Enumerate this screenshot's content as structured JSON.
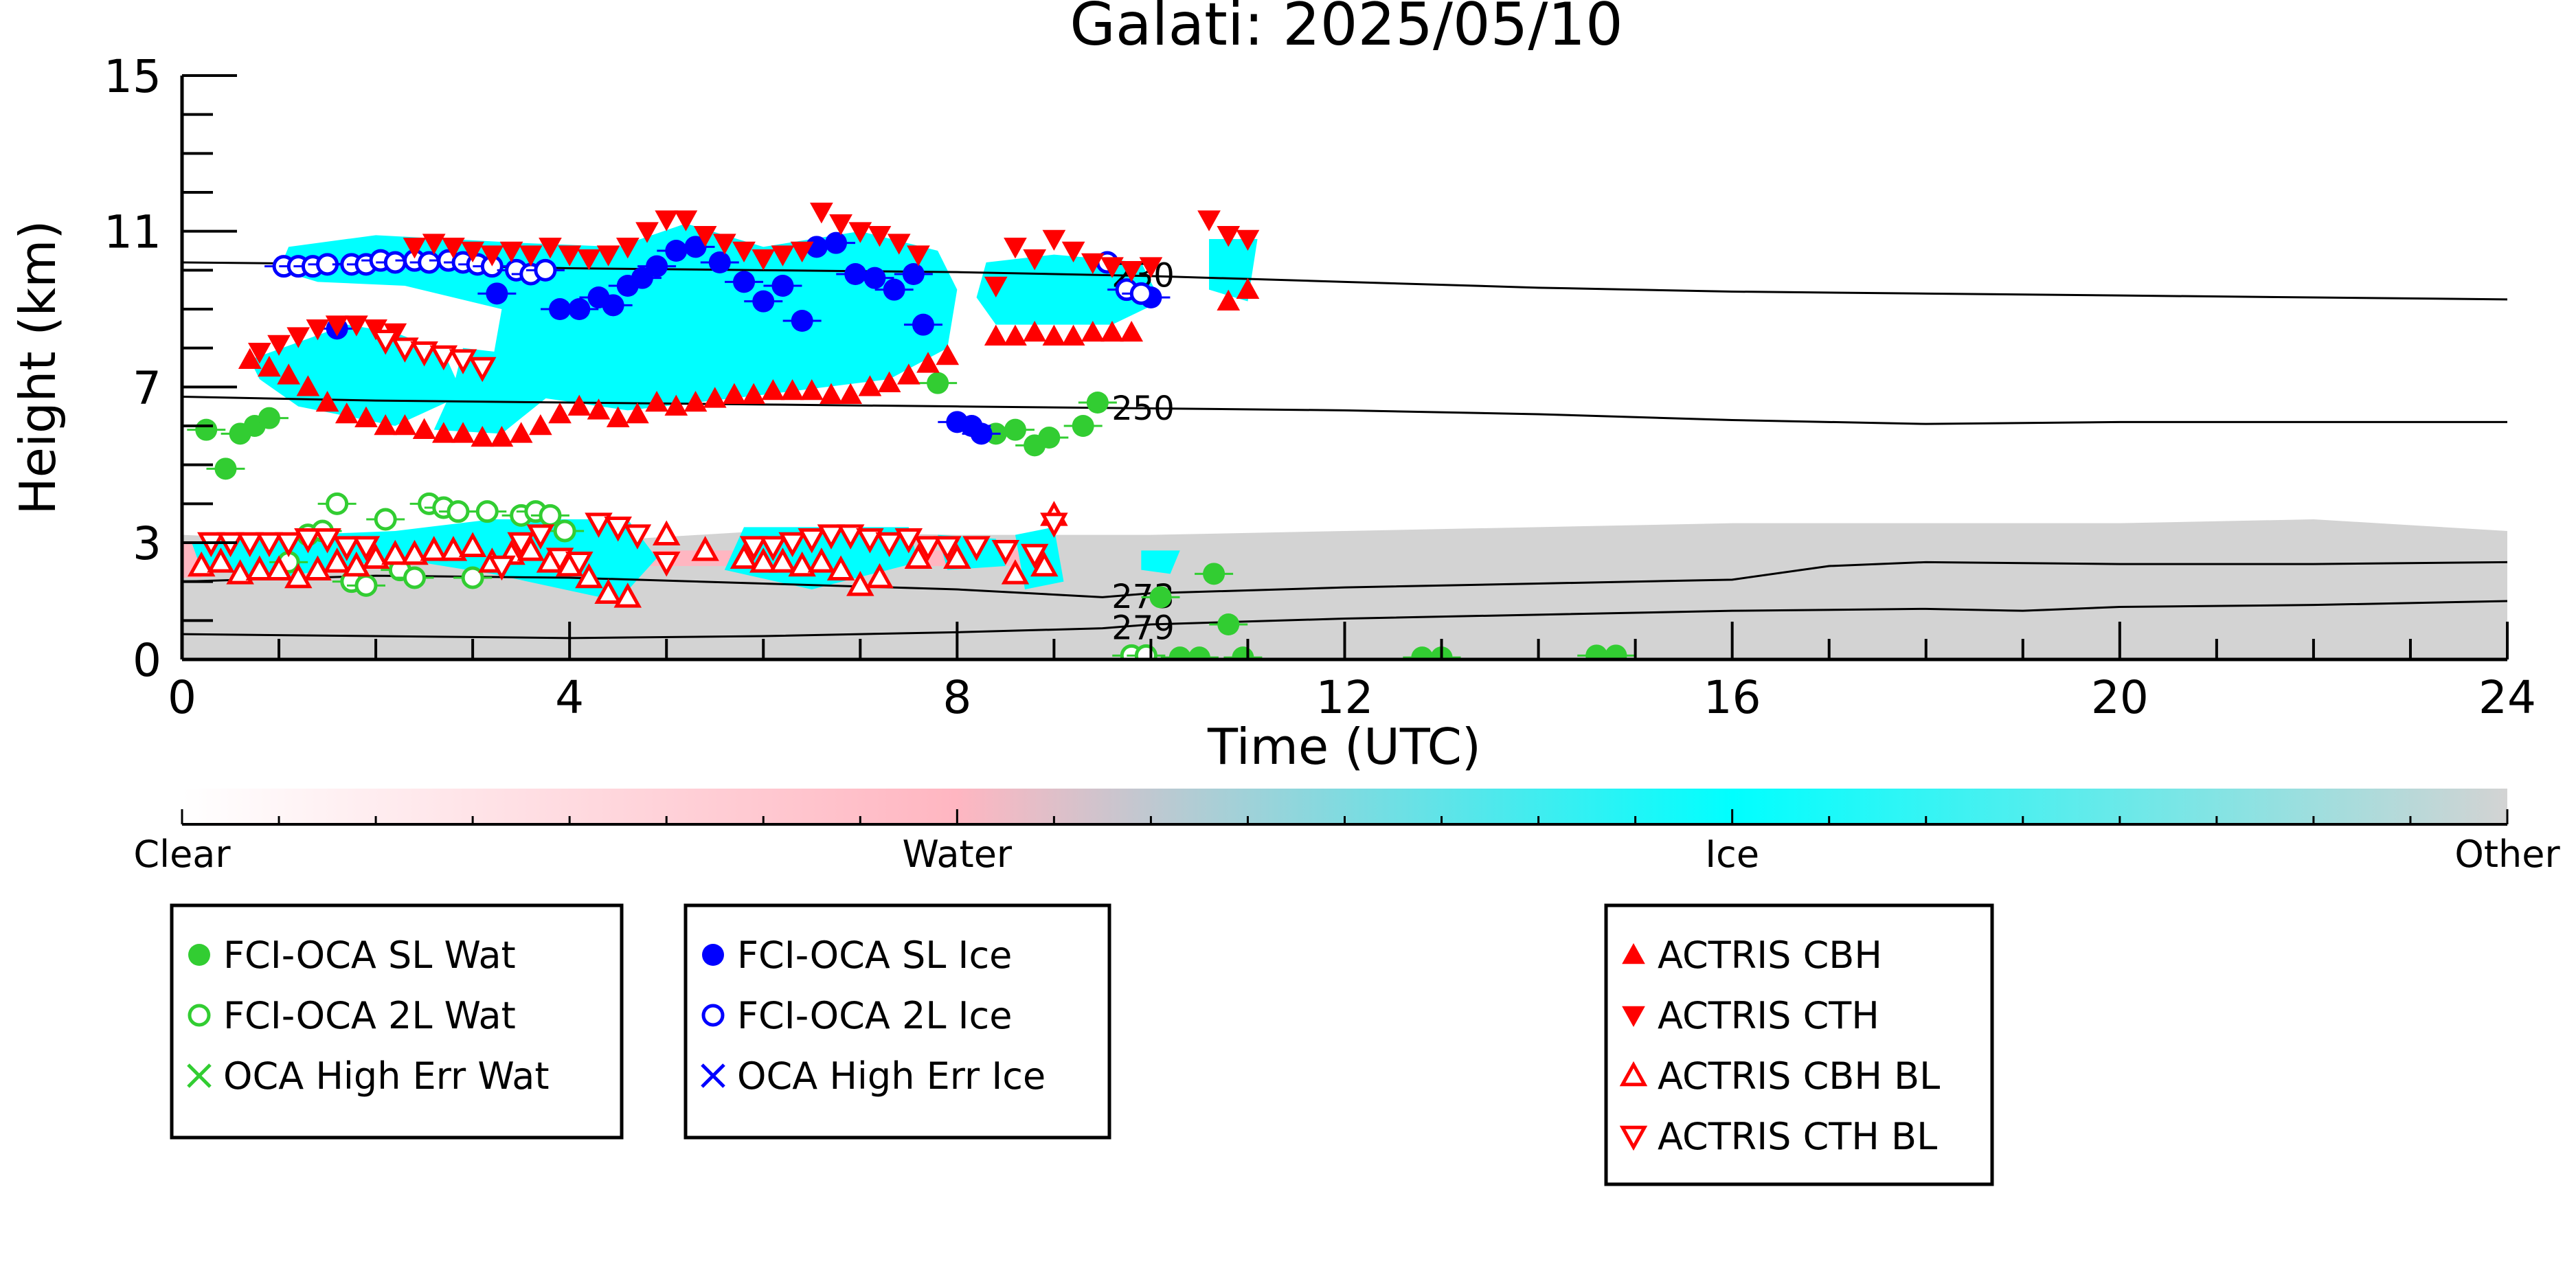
{
  "chart_data": {
    "type": "scatter",
    "title": "Galati: 2025/05/10",
    "xlabel": "Time (UTC)",
    "ylabel": "Height (km)",
    "xlim": [
      0,
      24
    ],
    "ylim": [
      0,
      15
    ],
    "x_ticks": [
      0,
      4,
      8,
      12,
      16,
      20,
      24
    ],
    "y_ticks": [
      0,
      3,
      7,
      11,
      15
    ],
    "colorbar": {
      "labels": [
        "Clear",
        "Water",
        "Ice",
        "Other"
      ],
      "colors": [
        "#ffffff",
        "#ffb6c1",
        "#00ffff",
        "#d3d3d3"
      ]
    },
    "contours": [
      {
        "label": "230",
        "x": [
          0,
          2,
          4,
          6,
          8,
          10,
          12,
          14,
          16,
          18,
          20,
          22,
          24
        ],
        "y": [
          10.2,
          10.15,
          10.05,
          10.0,
          9.95,
          9.85,
          9.7,
          9.55,
          9.45,
          9.4,
          9.35,
          9.3,
          9.25
        ]
      },
      {
        "label": "250",
        "x": [
          0,
          2,
          4,
          6,
          8,
          10,
          12,
          14,
          16,
          18,
          20,
          22,
          24
        ],
        "y": [
          6.75,
          6.65,
          6.6,
          6.55,
          6.5,
          6.45,
          6.4,
          6.3,
          6.15,
          6.05,
          6.1,
          6.1,
          6.1
        ]
      },
      {
        "label": "273",
        "x": [
          0,
          2,
          4,
          6,
          8,
          9.5,
          10,
          12,
          14,
          16,
          17,
          18,
          20,
          22,
          24
        ],
        "y": [
          2.0,
          2.15,
          2.1,
          1.95,
          1.8,
          1.6,
          1.7,
          1.85,
          1.95,
          2.05,
          2.4,
          2.5,
          2.45,
          2.45,
          2.5
        ]
      },
      {
        "label": "279",
        "x": [
          0,
          2,
          4,
          6,
          8,
          9.5,
          10,
          12,
          14,
          16,
          18,
          19,
          20,
          22,
          24
        ],
        "y": [
          0.65,
          0.6,
          0.55,
          0.6,
          0.7,
          0.8,
          0.9,
          1.05,
          1.15,
          1.25,
          1.3,
          1.25,
          1.35,
          1.4,
          1.5
        ]
      }
    ],
    "series": [
      {
        "name": "FCI-OCA SL Wat",
        "color": "#32cd32",
        "marker": "filled-circle",
        "x": [
          0.25,
          0.45,
          0.6,
          0.75,
          0.9,
          7.8,
          8.4,
          8.6,
          8.8,
          8.95,
          9.3,
          9.45,
          10.1,
          10.3,
          10.5,
          10.65,
          10.8,
          10.95,
          12.8,
          13.0,
          14.6,
          14.8
        ],
        "y": [
          5.9,
          4.9,
          5.8,
          6.0,
          6.2,
          7.1,
          5.8,
          5.9,
          5.5,
          5.7,
          6.0,
          6.6,
          1.6,
          0.05,
          0.05,
          2.2,
          0.9,
          0.05,
          0.05,
          0.05,
          0.1,
          0.1
        ]
      },
      {
        "name": "FCI-OCA 2L Wat",
        "color": "#32cd32",
        "marker": "open-circle",
        "x": [
          1.1,
          1.3,
          1.45,
          1.6,
          1.75,
          1.9,
          2.1,
          2.25,
          2.4,
          2.55,
          2.7,
          2.85,
          3.0,
          3.15,
          3.5,
          3.65,
          3.8,
          3.95,
          9.8,
          9.95
        ],
        "y": [
          2.5,
          3.2,
          3.3,
          4.0,
          2.0,
          1.9,
          3.6,
          2.3,
          2.1,
          4.0,
          3.9,
          3.8,
          2.1,
          3.8,
          3.7,
          3.8,
          3.7,
          3.3,
          0.1,
          0.1
        ]
      },
      {
        "name": "OCA High Err Wat",
        "color": "#32cd32",
        "marker": "x",
        "x": [],
        "y": []
      },
      {
        "name": "FCI-OCA SL Ice",
        "color": "#0000ff",
        "marker": "filled-circle",
        "x": [
          1.6,
          3.25,
          3.9,
          4.1,
          4.3,
          4.45,
          4.6,
          4.75,
          4.9,
          5.1,
          5.3,
          5.55,
          5.8,
          6.0,
          6.2,
          6.4,
          6.55,
          6.75,
          6.95,
          7.15,
          7.35,
          7.55,
          7.65,
          8.0,
          8.15,
          8.25,
          10.0
        ],
        "y": [
          8.5,
          9.4,
          9.0,
          9.0,
          9.3,
          9.1,
          9.6,
          9.8,
          10.1,
          10.5,
          10.6,
          10.2,
          9.7,
          9.2,
          9.6,
          8.7,
          10.6,
          10.7,
          9.9,
          9.8,
          9.5,
          9.9,
          8.6,
          6.1,
          6.0,
          5.8,
          9.3
        ]
      },
      {
        "name": "FCI-OCA 2L Ice",
        "color": "#0000ff",
        "marker": "open-circle",
        "x": [
          1.05,
          1.2,
          1.35,
          1.5,
          1.75,
          1.9,
          2.05,
          2.2,
          2.4,
          2.55,
          2.75,
          2.9,
          3.05,
          3.2,
          3.45,
          3.6,
          3.75,
          9.55,
          9.75,
          9.9
        ],
        "y": [
          10.1,
          10.1,
          10.1,
          10.15,
          10.15,
          10.15,
          10.25,
          10.2,
          10.25,
          10.2,
          10.25,
          10.2,
          10.15,
          10.1,
          10.0,
          9.9,
          10.0,
          10.2,
          9.5,
          9.4
        ]
      },
      {
        "name": "OCA High Err Ice",
        "color": "#0000ff",
        "marker": "x",
        "x": [],
        "y": []
      },
      {
        "name": "ACTRIS CBH",
        "color": "#ff0000",
        "marker": "filled-triangle-up",
        "x": [
          0.7,
          0.9,
          1.1,
          1.3,
          1.5,
          1.7,
          1.9,
          2.1,
          2.3,
          2.5,
          2.7,
          2.9,
          3.1,
          3.3,
          3.5,
          3.7,
          3.9,
          4.1,
          4.3,
          4.5,
          4.7,
          4.9,
          5.1,
          5.3,
          5.5,
          5.7,
          5.9,
          6.1,
          6.3,
          6.5,
          6.7,
          6.9,
          7.1,
          7.3,
          7.5,
          7.7,
          7.9,
          8.4,
          8.6,
          8.8,
          9.0,
          9.2,
          9.4,
          9.6,
          9.8,
          10.8,
          11.0
        ],
        "y": [
          7.7,
          7.5,
          7.3,
          7.0,
          6.6,
          6.3,
          6.2,
          6.0,
          6.0,
          5.9,
          5.8,
          5.8,
          5.7,
          5.7,
          5.8,
          6.0,
          6.3,
          6.5,
          6.4,
          6.2,
          6.3,
          6.6,
          6.5,
          6.6,
          6.7,
          6.8,
          6.8,
          6.9,
          6.9,
          6.9,
          6.8,
          6.8,
          7.0,
          7.1,
          7.3,
          7.6,
          7.8,
          8.3,
          8.3,
          8.4,
          8.3,
          8.3,
          8.4,
          8.4,
          8.4,
          9.2,
          9.5
        ]
      },
      {
        "name": "ACTRIS CTH",
        "color": "#ff0000",
        "marker": "filled-triangle-down",
        "x": [
          0.8,
          1.0,
          1.2,
          1.4,
          1.6,
          1.8,
          2.0,
          2.2,
          2.4,
          2.6,
          2.8,
          3.0,
          3.2,
          3.4,
          3.6,
          3.8,
          4.0,
          4.2,
          4.4,
          4.6,
          4.8,
          5.0,
          5.2,
          5.4,
          5.6,
          5.8,
          6.0,
          6.2,
          6.4,
          6.6,
          6.8,
          7.0,
          7.2,
          7.4,
          7.6,
          8.4,
          8.6,
          8.8,
          9.0,
          9.2,
          9.4,
          9.6,
          9.8,
          10.0,
          10.6,
          10.8,
          11.0
        ],
        "y": [
          7.9,
          8.1,
          8.3,
          8.5,
          8.6,
          8.6,
          8.5,
          8.4,
          10.6,
          10.7,
          10.6,
          10.5,
          10.4,
          10.5,
          10.4,
          10.6,
          10.4,
          10.3,
          10.4,
          10.6,
          11.0,
          11.3,
          11.3,
          10.9,
          10.7,
          10.5,
          10.3,
          10.4,
          10.5,
          11.5,
          11.2,
          11.0,
          10.9,
          10.7,
          10.4,
          9.6,
          10.6,
          10.3,
          10.8,
          10.5,
          10.2,
          10.1,
          10.0,
          10.1,
          11.3,
          10.9,
          10.8
        ]
      },
      {
        "name": "ACTRIS CBH BL",
        "color": "#ff0000",
        "marker": "open-triangle-up",
        "x": [
          0.2,
          0.4,
          0.6,
          0.8,
          1.0,
          1.2,
          1.4,
          1.6,
          1.8,
          2.0,
          2.2,
          2.4,
          2.6,
          2.8,
          3.0,
          3.2,
          3.4,
          3.6,
          3.8,
          4.0,
          4.2,
          4.4,
          4.6,
          5.0,
          5.4,
          5.8,
          6.0,
          6.2,
          6.4,
          6.6,
          6.8,
          7.0,
          7.2,
          7.6,
          8.0,
          8.6,
          8.9,
          9.0
        ],
        "y": [
          2.4,
          2.5,
          2.2,
          2.3,
          2.3,
          2.1,
          2.3,
          2.5,
          2.4,
          2.6,
          2.7,
          2.7,
          2.8,
          2.8,
          2.9,
          2.5,
          2.7,
          2.8,
          2.5,
          2.4,
          2.1,
          1.7,
          1.6,
          3.2,
          2.8,
          2.6,
          2.5,
          2.5,
          2.4,
          2.5,
          2.3,
          1.9,
          2.1,
          2.6,
          2.6,
          2.2,
          2.4,
          3.7
        ]
      },
      {
        "name": "ACTRIS CTH BL",
        "color": "#ff0000",
        "marker": "open-triangle-down",
        "x": [
          0.3,
          0.5,
          0.7,
          0.9,
          1.1,
          1.3,
          1.5,
          1.7,
          1.9,
          2.1,
          2.3,
          2.5,
          2.7,
          2.9,
          3.1,
          3.3,
          3.5,
          3.7,
          3.9,
          4.1,
          4.3,
          4.5,
          4.7,
          5.0,
          5.9,
          6.1,
          6.3,
          6.5,
          6.7,
          6.9,
          7.1,
          7.3,
          7.5,
          7.7,
          7.9,
          8.2,
          8.5,
          8.8,
          9.0
        ],
        "y": [
          3.0,
          3.0,
          3.0,
          3.0,
          3.0,
          3.1,
          3.1,
          2.9,
          2.9,
          8.2,
          8.0,
          7.9,
          7.8,
          7.7,
          7.5,
          2.4,
          3.0,
          3.2,
          2.6,
          2.5,
          3.5,
          3.4,
          3.2,
          2.5,
          2.9,
          2.9,
          3.0,
          3.1,
          3.2,
          3.2,
          3.1,
          3.0,
          3.1,
          2.9,
          2.9,
          2.9,
          2.8,
          2.7,
          3.5
        ]
      }
    ],
    "legend_groups": [
      [
        "FCI-OCA SL Wat",
        "FCI-OCA 2L Wat",
        "OCA High Err Wat"
      ],
      [
        "FCI-OCA SL Ice",
        "FCI-OCA 2L Ice",
        "OCA High Err Ice"
      ],
      [
        "ACTRIS CBH",
        "ACTRIS CTH",
        "ACTRIS CBH BL",
        "ACTRIS CTH BL"
      ]
    ],
    "grid": false
  }
}
